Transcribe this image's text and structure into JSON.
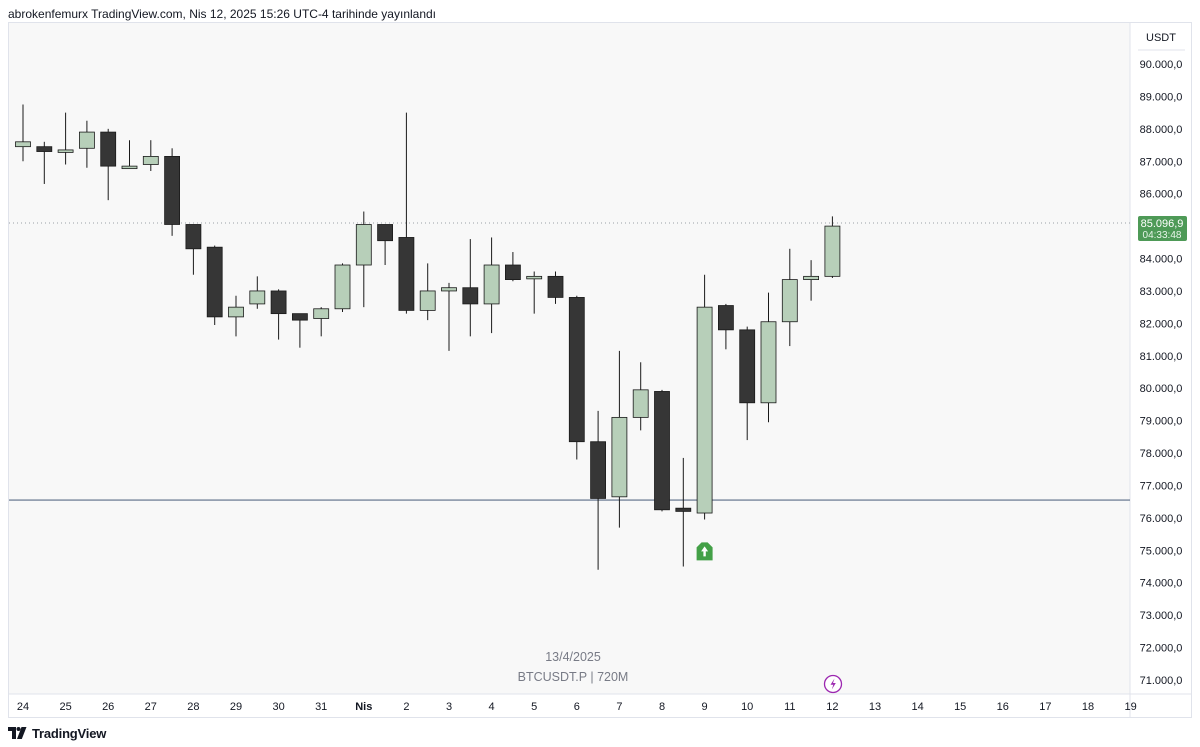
{
  "header": {
    "published_text": "abrokenfemurx TradingView.com, Nis 12, 2025 15:26 UTC-4 tarihinde yayınlandı"
  },
  "footer": {
    "brand": "TradingView",
    "logo_icon": "tradingview-logo-icon"
  },
  "price_axis": {
    "currency": "USDT",
    "labels": [
      "90.000,0",
      "89.000,0",
      "88.000,0",
      "87.000,0",
      "86.000,0",
      "84.000,0",
      "83.000,0",
      "82.000,0",
      "81.000,0",
      "80.000,0",
      "79.000,0",
      "78.000,0",
      "77.000,0",
      "76.000,0",
      "75.000,0",
      "74.000,0",
      "73.000,0",
      "72.000,0",
      "71.000,0"
    ],
    "current_price_label": "85.096,9",
    "countdown_label": "04:33:48"
  },
  "watermark": {
    "date": "13/4/2025",
    "symbol": "BTCUSDT.P | 720M"
  },
  "colors": {
    "bull": "#b7cfb9",
    "bear": "#363636",
    "outline": "#1a1a1a",
    "hline": "#5a6b86",
    "price_tag": "#4e9a57",
    "signal": "#43a047",
    "lightning": "#9c27b0"
  },
  "chart_data": {
    "type": "candlestick",
    "symbol": "BTCUSDT.P",
    "interval": "720M",
    "time_labels": [
      "24",
      "25",
      "26",
      "27",
      "28",
      "29",
      "30",
      "31",
      "Nis",
      "2",
      "3",
      "4",
      "5",
      "6",
      "7",
      "8",
      "9",
      "10",
      "11",
      "12",
      "13",
      "14",
      "15",
      "16",
      "17",
      "18",
      "19"
    ],
    "ylim": [
      70500,
      91000
    ],
    "horizontal_line": 76550,
    "current_price": 85096.9,
    "candles": [
      {
        "o": 87450,
        "c": 87600,
        "h": 88750,
        "l": 87000
      },
      {
        "o": 87450,
        "c": 87300,
        "h": 87600,
        "l": 86300
      },
      {
        "o": 87350,
        "c": 87350,
        "h": 88500,
        "l": 86900
      },
      {
        "o": 87400,
        "c": 87900,
        "h": 88250,
        "l": 86800
      },
      {
        "o": 87900,
        "c": 86850,
        "h": 88000,
        "l": 85800
      },
      {
        "o": 86850,
        "c": 86850,
        "h": 87650,
        "l": 86850
      },
      {
        "o": 86900,
        "c": 87150,
        "h": 87650,
        "l": 86700
      },
      {
        "o": 87150,
        "c": 85050,
        "h": 87400,
        "l": 84700
      },
      {
        "o": 85050,
        "c": 84300,
        "h": 85050,
        "l": 83500
      },
      {
        "o": 84350,
        "c": 82200,
        "h": 84400,
        "l": 81950
      },
      {
        "o": 82200,
        "c": 82500,
        "h": 82850,
        "l": 81600
      },
      {
        "o": 82600,
        "c": 83000,
        "h": 83450,
        "l": 82450
      },
      {
        "o": 83000,
        "c": 82300,
        "h": 83050,
        "l": 81500
      },
      {
        "o": 82300,
        "c": 82100,
        "h": 82300,
        "l": 81250
      },
      {
        "o": 82150,
        "c": 82450,
        "h": 82500,
        "l": 81600
      },
      {
        "o": 82450,
        "c": 83800,
        "h": 83850,
        "l": 82350
      },
      {
        "o": 83800,
        "c": 85050,
        "h": 85450,
        "l": 82500
      },
      {
        "o": 85050,
        "c": 84550,
        "h": 85050,
        "l": 83800
      },
      {
        "o": 84650,
        "c": 82400,
        "h": 88500,
        "l": 82300
      },
      {
        "o": 82400,
        "c": 83000,
        "h": 83850,
        "l": 82100
      },
      {
        "o": 83000,
        "c": 83100,
        "h": 83250,
        "l": 81150
      },
      {
        "o": 83100,
        "c": 82600,
        "h": 84600,
        "l": 81600
      },
      {
        "o": 82600,
        "c": 83800,
        "h": 84650,
        "l": 81700
      },
      {
        "o": 83800,
        "c": 83350,
        "h": 84200,
        "l": 83300
      },
      {
        "o": 83400,
        "c": 83450,
        "h": 83600,
        "l": 82300
      },
      {
        "o": 83450,
        "c": 82800,
        "h": 83600,
        "l": 82600
      },
      {
        "o": 82800,
        "c": 78350,
        "h": 82850,
        "l": 77800
      },
      {
        "o": 78350,
        "c": 76600,
        "h": 79300,
        "l": 74400
      },
      {
        "o": 76650,
        "c": 79100,
        "h": 81150,
        "l": 75700
      },
      {
        "o": 79100,
        "c": 79950,
        "h": 80800,
        "l": 78700
      },
      {
        "o": 79900,
        "c": 76250,
        "h": 79950,
        "l": 76200
      },
      {
        "o": 76300,
        "c": 76200,
        "h": 77850,
        "l": 74500
      },
      {
        "o": 76150,
        "c": 82500,
        "h": 83500,
        "l": 75950
      },
      {
        "o": 82550,
        "c": 81800,
        "h": 82600,
        "l": 81200
      },
      {
        "o": 81800,
        "c": 79550,
        "h": 81900,
        "l": 78400
      },
      {
        "o": 79550,
        "c": 82050,
        "h": 82950,
        "l": 78950
      },
      {
        "o": 82050,
        "c": 83350,
        "h": 84300,
        "l": 81300
      },
      {
        "o": 83350,
        "c": 83450,
        "h": 83950,
        "l": 82700
      },
      {
        "o": 83450,
        "c": 85000,
        "h": 85300,
        "l": 83400
      }
    ],
    "signals": [
      {
        "type": "up-arrow",
        "candle_index": 32,
        "price": 75000
      }
    ]
  }
}
